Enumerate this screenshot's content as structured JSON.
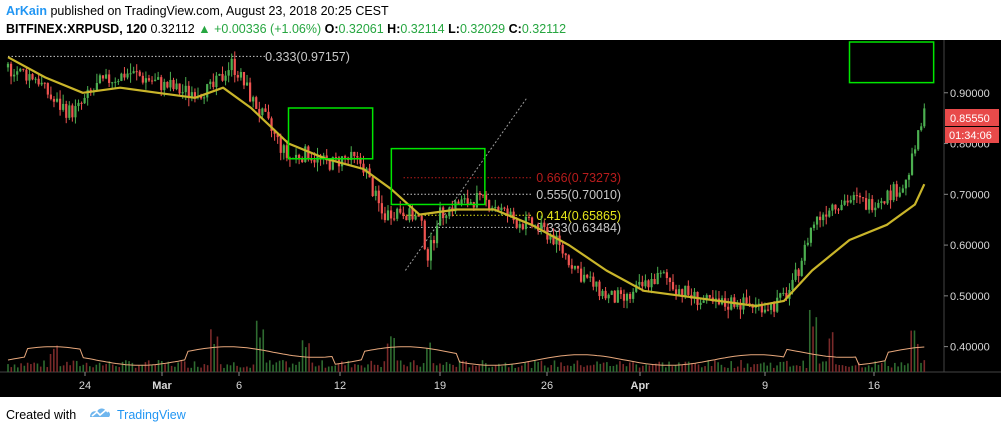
{
  "header": {
    "author": "ArKain",
    "published": "published on TradingView.com, August 23, 2018 20:25 CEST",
    "symbol": "BITFINEX:XRPUSD, 120",
    "last": "0.32112",
    "change": "▲ +0.00336 (+1.06%)",
    "o_label": "O:",
    "o_value": "0.32061",
    "h_label": "H:",
    "h_value": "0.32114",
    "l_label": "L:",
    "l_value": "0.32029",
    "c_label": "C:",
    "c_value": "0.32112"
  },
  "footer": {
    "created_with": "Created with",
    "brand": "TradingView"
  },
  "colors": {
    "background": "#000000",
    "up_candle": "#4caf50",
    "down_candle": "#ef5350",
    "ma_line": "#c9b52a",
    "fib_gray": "#c8c8c8",
    "fib_red": "#b71c1c",
    "fib_yellow": "#e6e61a",
    "box": "#00e600",
    "price_tag": "#e84a4a"
  },
  "chart_data": {
    "type": "candlestick",
    "ylim": [
      0.35,
      1.0
    ],
    "y_ticks": [
      "0.90000",
      "0.80000",
      "0.70000",
      "0.60000",
      "0.50000",
      "0.40000"
    ],
    "x_ticks": [
      "24",
      "Mar",
      "6",
      "12",
      "19",
      "26",
      "Apr",
      "9",
      "16"
    ],
    "price_path": [
      [
        0,
        0.95
      ],
      [
        3,
        0.93
      ],
      [
        5,
        0.88
      ],
      [
        7,
        0.86
      ],
      [
        10,
        0.92
      ],
      [
        13,
        0.94
      ],
      [
        16,
        0.92
      ],
      [
        19,
        0.9
      ],
      [
        22,
        0.91
      ],
      [
        24,
        0.96
      ],
      [
        26,
        0.89
      ],
      [
        28,
        0.83
      ],
      [
        30,
        0.77
      ],
      [
        32,
        0.78
      ],
      [
        34,
        0.76
      ],
      [
        36,
        0.77
      ],
      [
        38,
        0.76
      ],
      [
        40,
        0.66
      ],
      [
        42,
        0.67
      ],
      [
        44,
        0.65
      ],
      [
        45,
        0.57
      ],
      [
        46,
        0.66
      ],
      [
        48,
        0.68
      ],
      [
        50,
        0.69
      ],
      [
        52,
        0.68
      ],
      [
        54,
        0.65
      ],
      [
        56,
        0.64
      ],
      [
        58,
        0.62
      ],
      [
        60,
        0.57
      ],
      [
        62,
        0.53
      ],
      [
        64,
        0.5
      ],
      [
        66,
        0.49
      ],
      [
        68,
        0.52
      ],
      [
        70,
        0.54
      ],
      [
        72,
        0.51
      ],
      [
        74,
        0.49
      ],
      [
        76,
        0.48
      ],
      [
        78,
        0.49
      ],
      [
        80,
        0.48
      ],
      [
        82,
        0.48
      ],
      [
        84,
        0.52
      ],
      [
        86,
        0.64
      ],
      [
        88,
        0.68
      ],
      [
        90,
        0.69
      ],
      [
        92,
        0.68
      ],
      [
        94,
        0.7
      ],
      [
        96,
        0.72
      ],
      [
        97,
        0.79
      ],
      [
        98,
        0.86
      ]
    ],
    "moving_average": [
      [
        0,
        0.97
      ],
      [
        4,
        0.93
      ],
      [
        8,
        0.9
      ],
      [
        12,
        0.91
      ],
      [
        16,
        0.9
      ],
      [
        20,
        0.89
      ],
      [
        23,
        0.91
      ],
      [
        26,
        0.87
      ],
      [
        30,
        0.8
      ],
      [
        34,
        0.77
      ],
      [
        38,
        0.75
      ],
      [
        41,
        0.71
      ],
      [
        44,
        0.66
      ],
      [
        48,
        0.67
      ],
      [
        52,
        0.67
      ],
      [
        56,
        0.64
      ],
      [
        60,
        0.6
      ],
      [
        64,
        0.55
      ],
      [
        68,
        0.51
      ],
      [
        72,
        0.5
      ],
      [
        76,
        0.49
      ],
      [
        80,
        0.48
      ],
      [
        83,
        0.49
      ],
      [
        86,
        0.55
      ],
      [
        90,
        0.61
      ],
      [
        94,
        0.64
      ],
      [
        97,
        0.68
      ],
      [
        98,
        0.72
      ]
    ],
    "volume_spikes": [
      [
        5,
        0.4
      ],
      [
        22,
        0.7
      ],
      [
        27,
        0.8
      ],
      [
        32,
        0.5
      ],
      [
        41,
        0.6
      ],
      [
        45,
        0.5
      ],
      [
        86,
        1.0
      ],
      [
        88,
        0.6
      ],
      [
        97,
        0.7
      ]
    ],
    "fib_levels": [
      {
        "label": "0.333(0.97157)",
        "value": 0.97157,
        "color": "#c8c8c8"
      },
      {
        "label": "0.666(0.73273)",
        "value": 0.73273,
        "color": "#b71c1c"
      },
      {
        "label": "0.555(0.70010)",
        "value": 0.7001,
        "color": "#c8c8c8"
      },
      {
        "label": "0.414(0.65865)",
        "value": 0.65865,
        "color": "#e6e61a"
      },
      {
        "label": "0.333(0.63484)",
        "value": 0.63484,
        "color": "#c8c8c8"
      }
    ],
    "boxes": [
      {
        "x0": 30,
        "x1": 39,
        "y_top": 0.87,
        "y_bottom": 0.77
      },
      {
        "x0": 41,
        "x1": 51,
        "y_top": 0.79,
        "y_bottom": 0.68
      },
      {
        "x0": 90,
        "x1": 99,
        "y_top": 1.0,
        "y_bottom": 0.92
      }
    ],
    "last_price_tag": "0.85550",
    "countdown_tag": "01:34:06"
  }
}
